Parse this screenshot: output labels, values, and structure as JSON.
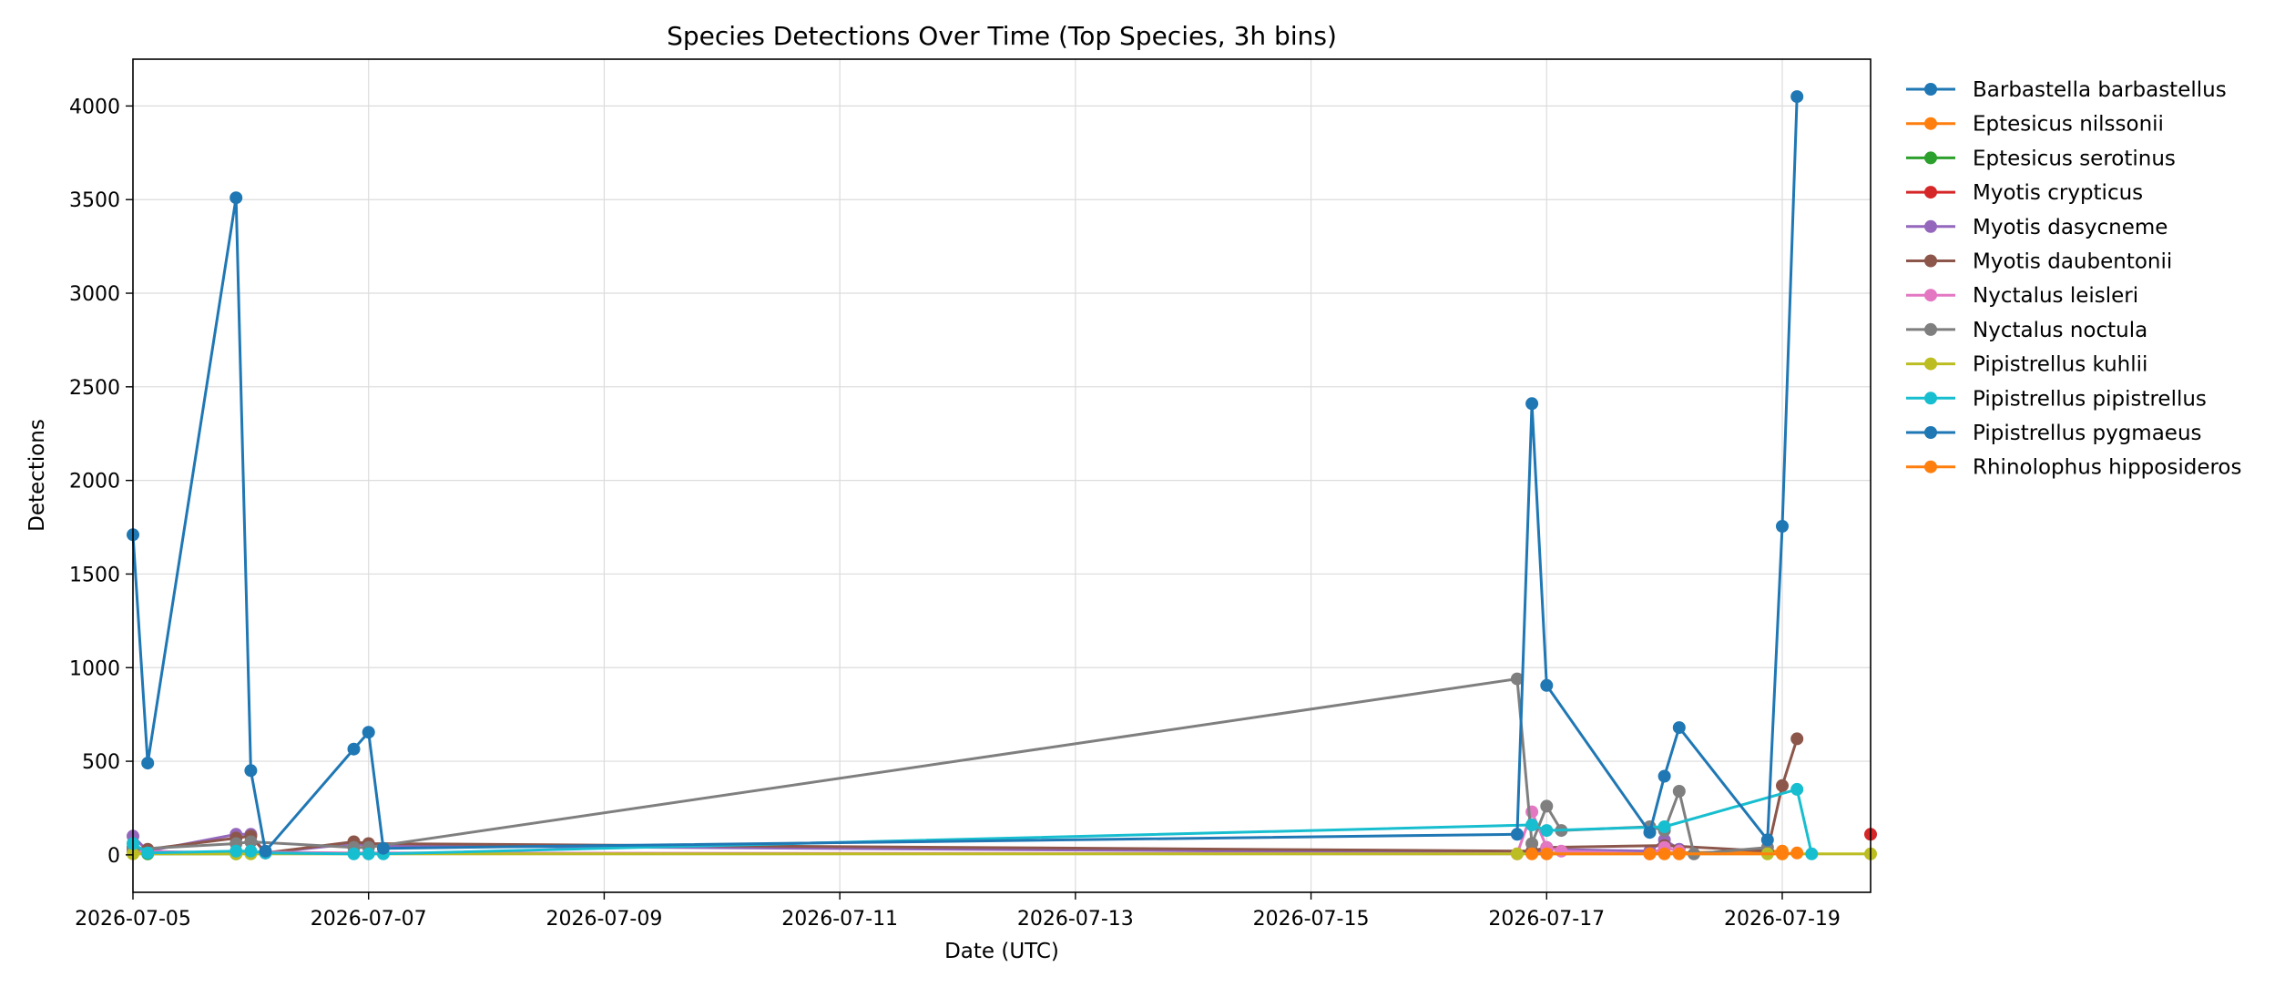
{
  "chart_data": {
    "type": "line",
    "title": "Species Detections Over Time (Top Species, 3h bins)",
    "xlabel": "Date (UTC)",
    "ylabel": "Detections",
    "x_ticks": [
      "2026-07-05",
      "2026-07-07",
      "2026-07-09",
      "2026-07-11",
      "2026-07-13",
      "2026-07-15",
      "2026-07-17",
      "2026-07-19"
    ],
    "y_ticks": [
      0,
      500,
      1000,
      1500,
      2000,
      2500,
      3000,
      3500,
      4000
    ],
    "xlim": [
      "2026-07-05T00:00",
      "2026-07-19T18:00"
    ],
    "ylim": [
      -200,
      4250
    ],
    "grid": true,
    "legend_position": "outside-right",
    "series": [
      {
        "name": "Barbastella barbastellus",
        "color": "#1f77b4",
        "points": []
      },
      {
        "name": "Eptesicus nilssonii",
        "color": "#ff7f0e",
        "points": [
          [
            "2026-07-16T21:00",
            10
          ],
          [
            "2026-07-17T00:00",
            10
          ],
          [
            "2026-07-18T00:00",
            10
          ],
          [
            "2026-07-19T00:00",
            20
          ]
        ]
      },
      {
        "name": "Eptesicus serotinus",
        "color": "#2ca02c",
        "points": [
          [
            "2026-07-05T00:00",
            10
          ],
          [
            "2026-07-05T03:00",
            5
          ],
          [
            "2026-07-05T21:00",
            5
          ]
        ]
      },
      {
        "name": "Myotis crypticus",
        "color": "#d62728",
        "points": [
          [
            "2026-07-19T18:00",
            110
          ]
        ]
      },
      {
        "name": "Myotis dasycneme",
        "color": "#9467bd",
        "points": [
          [
            "2026-07-05T00:00",
            100
          ],
          [
            "2026-07-05T03:00",
            20
          ],
          [
            "2026-07-05T21:00",
            110
          ],
          [
            "2026-07-06T00:00",
            110
          ],
          [
            "2026-07-06T03:00",
            10
          ],
          [
            "2026-07-06T21:00",
            60
          ],
          [
            "2026-07-07T00:00",
            50
          ],
          [
            "2026-07-16T21:00",
            10
          ],
          [
            "2026-07-17T00:00",
            30
          ],
          [
            "2026-07-17T21:00",
            20
          ],
          [
            "2026-07-18T00:00",
            80
          ],
          [
            "2026-07-18T03:00",
            30
          ]
        ]
      },
      {
        "name": "Myotis daubentonii",
        "color": "#8c564b",
        "points": [
          [
            "2026-07-05T00:00",
            40
          ],
          [
            "2026-07-05T03:00",
            30
          ],
          [
            "2026-07-05T21:00",
            90
          ],
          [
            "2026-07-06T00:00",
            100
          ],
          [
            "2026-07-06T03:00",
            10
          ],
          [
            "2026-07-06T21:00",
            70
          ],
          [
            "2026-07-07T00:00",
            60
          ],
          [
            "2026-07-16T21:00",
            20
          ],
          [
            "2026-07-17T00:00",
            40
          ],
          [
            "2026-07-18T00:00",
            50
          ],
          [
            "2026-07-18T21:00",
            20
          ],
          [
            "2026-07-19T00:00",
            370
          ],
          [
            "2026-07-19T03:00",
            620
          ]
        ]
      },
      {
        "name": "Nyctalus leisleri",
        "color": "#e377c2",
        "points": [
          [
            "2026-07-05T00:00",
            20
          ],
          [
            "2026-07-05T21:00",
            10
          ],
          [
            "2026-07-06T00:00",
            15
          ],
          [
            "2026-07-06T21:00",
            10
          ],
          [
            "2026-07-16T18:00",
            5
          ],
          [
            "2026-07-16T21:00",
            230
          ],
          [
            "2026-07-17T00:00",
            40
          ],
          [
            "2026-07-17T03:00",
            20
          ],
          [
            "2026-07-17T21:00",
            5
          ],
          [
            "2026-07-18T00:00",
            40
          ],
          [
            "2026-07-18T03:00",
            20
          ]
        ]
      },
      {
        "name": "Nyctalus noctula",
        "color": "#7f7f7f",
        "points": [
          [
            "2026-07-05T00:00",
            30
          ],
          [
            "2026-07-05T21:00",
            60
          ],
          [
            "2026-07-06T00:00",
            70
          ],
          [
            "2026-07-06T21:00",
            40
          ],
          [
            "2026-07-07T00:00",
            40
          ],
          [
            "2026-07-16T18:00",
            940
          ],
          [
            "2026-07-16T21:00",
            60
          ],
          [
            "2026-07-17T00:00",
            260
          ],
          [
            "2026-07-17T03:00",
            130
          ],
          [
            "2026-07-17T21:00",
            150
          ],
          [
            "2026-07-18T00:00",
            130
          ],
          [
            "2026-07-18T03:00",
            340
          ],
          [
            "2026-07-18T06:00",
            5
          ],
          [
            "2026-07-18T21:00",
            40
          ]
        ]
      },
      {
        "name": "Pipistrellus kuhlii",
        "color": "#bcbd22",
        "points": [
          [
            "2026-07-05T00:00",
            5
          ],
          [
            "2026-07-05T21:00",
            5
          ],
          [
            "2026-07-06T00:00",
            5
          ],
          [
            "2026-07-16T18:00",
            5
          ],
          [
            "2026-07-18T21:00",
            5
          ],
          [
            "2026-07-19T00:00",
            5
          ],
          [
            "2026-07-19T18:00",
            5
          ]
        ]
      },
      {
        "name": "Pipistrellus pipistrellus",
        "color": "#17becf",
        "points": [
          [
            "2026-07-05T00:00",
            60
          ],
          [
            "2026-07-05T03:00",
            10
          ],
          [
            "2026-07-05T21:00",
            20
          ],
          [
            "2026-07-06T00:00",
            20
          ],
          [
            "2026-07-06T03:00",
            10
          ],
          [
            "2026-07-06T21:00",
            5
          ],
          [
            "2026-07-07T00:00",
            5
          ],
          [
            "2026-07-07T03:00",
            5
          ],
          [
            "2026-07-16T21:00",
            160
          ],
          [
            "2026-07-17T00:00",
            130
          ],
          [
            "2026-07-18T00:00",
            150
          ],
          [
            "2026-07-19T03:00",
            350
          ],
          [
            "2026-07-19T06:00",
            5
          ]
        ]
      },
      {
        "name": "Pipistrellus pygmaeus",
        "color": "#1f77b4",
        "points": [
          [
            "2026-07-05T00:00",
            1710
          ],
          [
            "2026-07-05T03:00",
            490
          ],
          [
            "2026-07-05T21:00",
            3510
          ],
          [
            "2026-07-06T00:00",
            450
          ],
          [
            "2026-07-06T03:00",
            20
          ],
          [
            "2026-07-06T21:00",
            565
          ],
          [
            "2026-07-07T00:00",
            655
          ],
          [
            "2026-07-07T03:00",
            35
          ],
          [
            "2026-07-16T18:00",
            110
          ],
          [
            "2026-07-16T21:00",
            2410
          ],
          [
            "2026-07-17T00:00",
            905
          ],
          [
            "2026-07-17T21:00",
            120
          ],
          [
            "2026-07-18T00:00",
            420
          ],
          [
            "2026-07-18T03:00",
            680
          ],
          [
            "2026-07-18T21:00",
            80
          ],
          [
            "2026-07-19T00:00",
            1755
          ],
          [
            "2026-07-19T03:00",
            4050
          ]
        ]
      },
      {
        "name": "Rhinolophus hipposideros",
        "color": "#ff7f0e",
        "points": [
          [
            "2026-07-16T21:00",
            5
          ],
          [
            "2026-07-17T00:00",
            5
          ],
          [
            "2026-07-17T21:00",
            5
          ],
          [
            "2026-07-18T00:00",
            5
          ],
          [
            "2026-07-18T03:00",
            5
          ],
          [
            "2026-07-19T00:00",
            5
          ],
          [
            "2026-07-19T03:00",
            10
          ]
        ]
      }
    ]
  }
}
